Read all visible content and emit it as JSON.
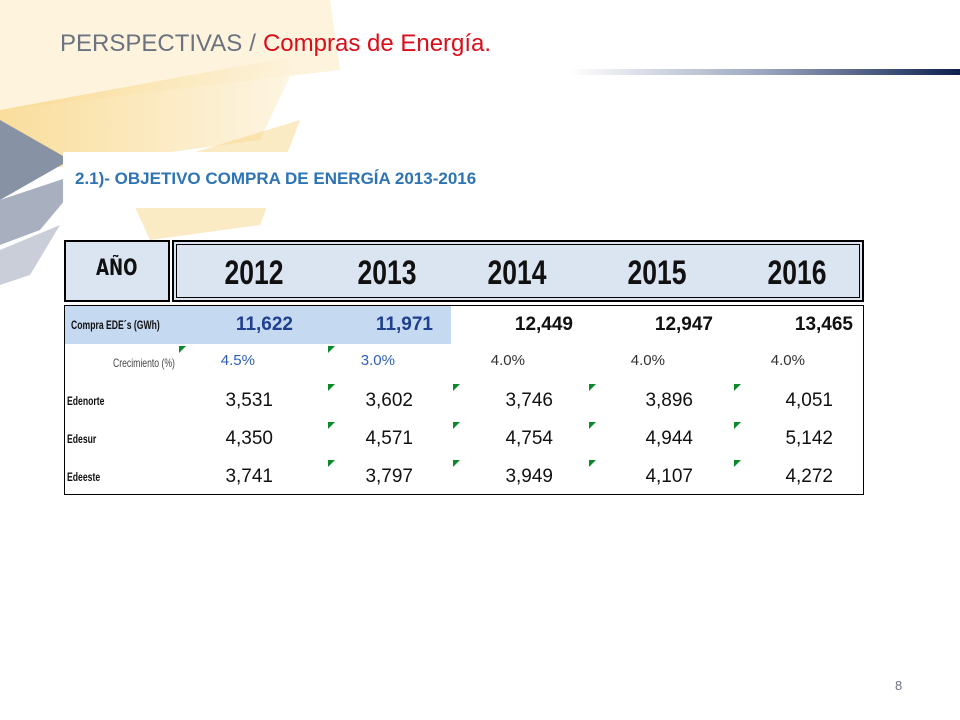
{
  "header": {
    "section": "PERSPECTIVAS",
    "separator": "/",
    "topic": "Compras de Energía."
  },
  "subtitle": "2.1)- OBJETIVO COMPRA DE ENERGÍA 2013-2016",
  "table": {
    "year_label": "AÑO",
    "years": [
      "2012",
      "2013",
      "2014",
      "2015",
      "2016"
    ],
    "rows": [
      {
        "label": "Compra EDE´s (GWh)",
        "values": [
          "11,622",
          "11,971",
          "12,449",
          "12,947",
          "13,465"
        ]
      },
      {
        "label": "Crecimiento (%)",
        "values": [
          "4.5%",
          "3.0%",
          "4.0%",
          "4.0%",
          "4.0%"
        ]
      },
      {
        "label": "Edenorte",
        "values": [
          "3,531",
          "3,602",
          "3,746",
          "3,896",
          "4,051"
        ]
      },
      {
        "label": "Edesur",
        "values": [
          "4,350",
          "4,571",
          "4,754",
          "4,944",
          "5,142"
        ]
      },
      {
        "label": "Edeeste",
        "values": [
          "3,741",
          "3,797",
          "3,949",
          "4,107",
          "4,272"
        ]
      }
    ]
  },
  "page_number": "8",
  "colors": {
    "title_gray": "#6b7280",
    "title_red": "#d90e1a",
    "subtitle_blue": "#2e74b5",
    "header_fill": "#dbe5f1",
    "highlight_fill": "#c5d9f1",
    "growth_blue": "#2e5fb5",
    "marker_green": "#0a8a2a"
  }
}
